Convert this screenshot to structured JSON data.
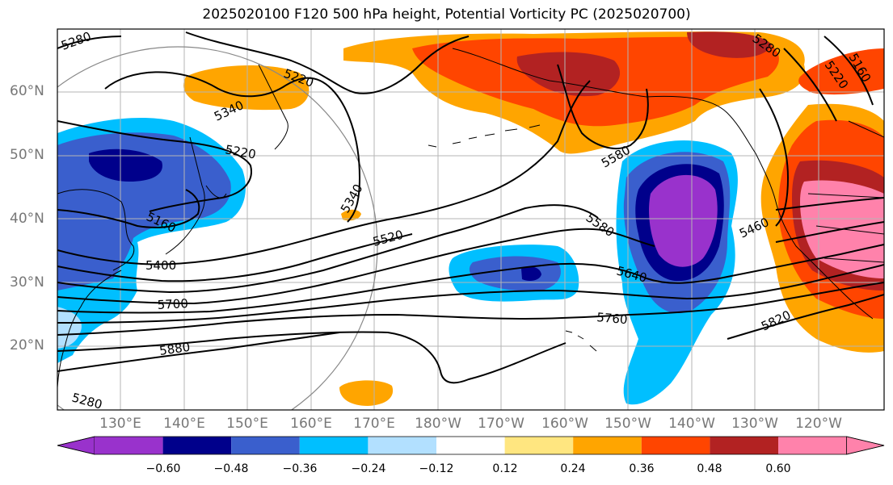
{
  "title": "2025020100 F120 500 hPa height, Potential Vorticity PC (2025020700)",
  "lat_labels": [
    "60°N",
    "50°N",
    "40°N",
    "30°N",
    "20°N"
  ],
  "lon_labels": [
    "130°E",
    "140°E",
    "150°E",
    "160°E",
    "170°E",
    "180°W",
    "170°W",
    "160°W",
    "150°W",
    "140°W",
    "130°W",
    "120°W"
  ],
  "colorbar": {
    "ticks": [
      "−0.60",
      "−0.48",
      "−0.36",
      "−0.24",
      "−0.12",
      "0.12",
      "0.24",
      "0.36",
      "0.48",
      "0.60"
    ],
    "colors": [
      "#9932cc",
      "#00008b",
      "#3a5fcd",
      "#00bfff",
      "#b2e0ff",
      "#ffffff",
      "#ffe680",
      "#ffa500",
      "#ff4500",
      "#b22222",
      "#ff82ab"
    ]
  },
  "contour_labels": [
    "5280",
    "5220",
    "5340",
    "5220",
    "5160",
    "5400",
    "5700",
    "5880",
    "5340",
    "5520",
    "5580",
    "5580",
    "5640",
    "5760",
    "5280",
    "5220",
    "5160",
    "5460",
    "5820",
    "5280"
  ]
}
